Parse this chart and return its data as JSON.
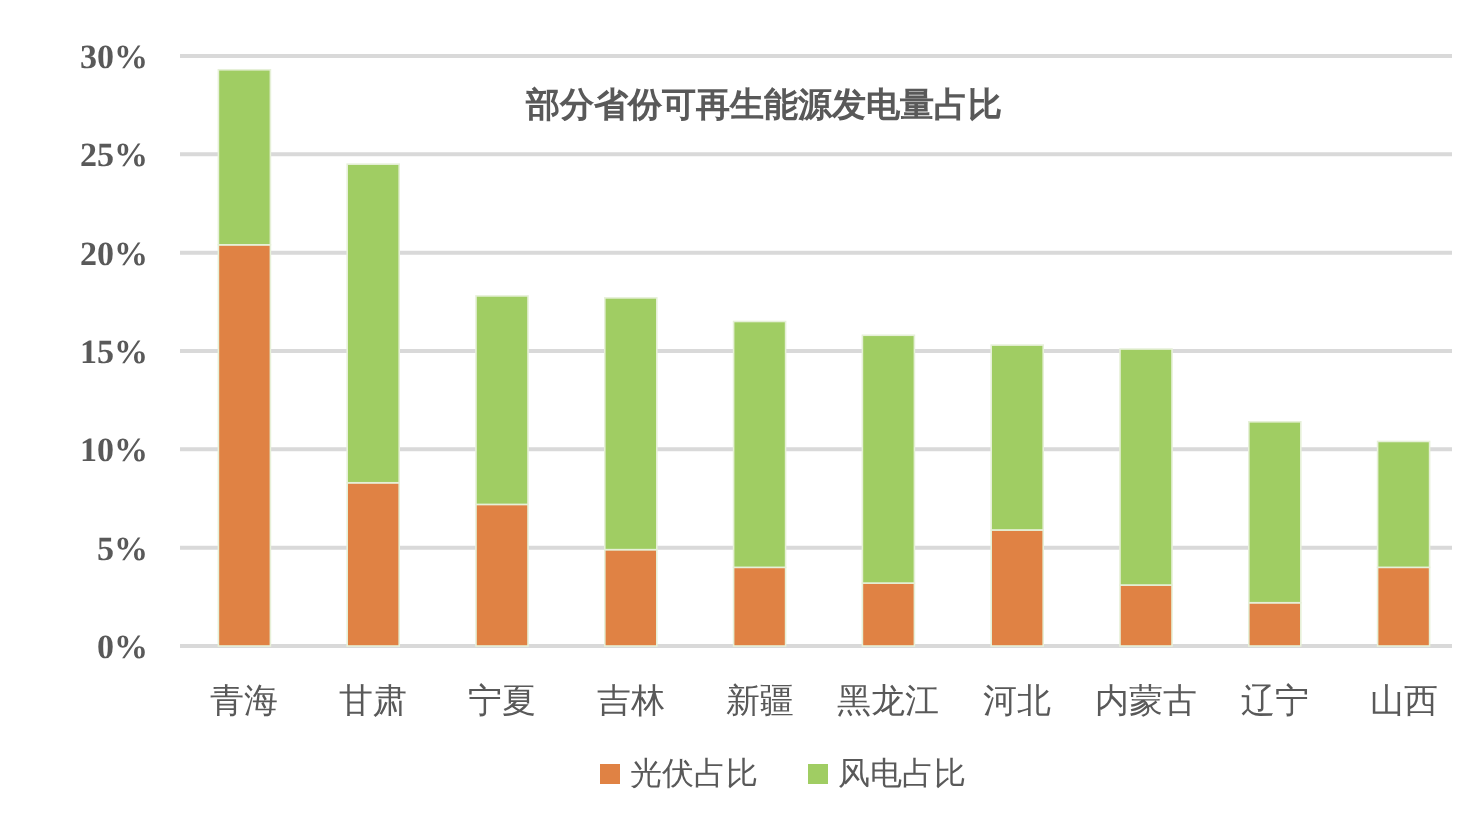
{
  "chart_data": {
    "type": "bar",
    "stacked": true,
    "title": "部分省份可再生能源发电量占比",
    "categories": [
      "青海",
      "甘肃",
      "宁夏",
      "吉林",
      "新疆",
      "黑龙江",
      "河北",
      "内蒙古",
      "辽宁",
      "山西"
    ],
    "series": [
      {
        "name": "光伏占比",
        "color": "#e08244",
        "values": [
          20.4,
          8.3,
          7.2,
          4.9,
          4.0,
          3.2,
          5.9,
          3.1,
          2.2,
          4.0
        ]
      },
      {
        "name": "风电占比",
        "color": "#a0cd63",
        "values": [
          8.9,
          16.2,
          10.6,
          12.8,
          12.5,
          12.6,
          9.4,
          12.0,
          9.2,
          6.4
        ]
      }
    ],
    "ylim": [
      0,
      30
    ],
    "yticks": [
      {
        "value": 0,
        "label": "0%"
      },
      {
        "value": 5,
        "label": "5%"
      },
      {
        "value": 10,
        "label": "10%"
      },
      {
        "value": 15,
        "label": "15%"
      },
      {
        "value": 20,
        "label": "20%"
      },
      {
        "value": 25,
        "label": "25%"
      },
      {
        "value": 30,
        "label": "30%"
      }
    ],
    "grid": "y",
    "legend": "bottom"
  }
}
